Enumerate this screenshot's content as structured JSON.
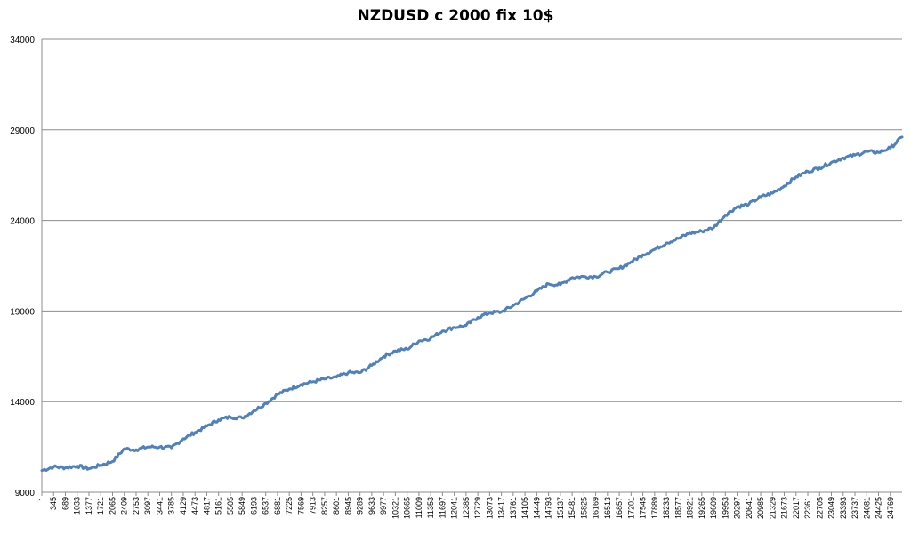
{
  "chart_data": {
    "type": "line",
    "title": "NZDUSD c 2000  fix 10$",
    "xlabel": "",
    "ylabel": "",
    "ylim": [
      9000,
      34000
    ],
    "yticks": [
      9000,
      14000,
      19000,
      24000,
      29000,
      34000
    ],
    "xlim": [
      1,
      25113
    ],
    "xtick_labels": [
      "1",
      "345",
      "689",
      "1033",
      "1377",
      "1721",
      "2065",
      "2409",
      "2753",
      "3097",
      "3441",
      "3785",
      "4129",
      "4473",
      "4817",
      "5161",
      "5505",
      "5849",
      "6193",
      "6537",
      "6881",
      "7225",
      "7569",
      "7913",
      "8257",
      "8601",
      "8945",
      "9289",
      "9633",
      "9977",
      "10321",
      "10665",
      "11009",
      "11353",
      "11697",
      "12041",
      "12385",
      "12729",
      "13073",
      "13417",
      "13761",
      "14105",
      "14449",
      "14793",
      "15137",
      "15481",
      "15825",
      "16169",
      "16513",
      "16857",
      "17201",
      "17545",
      "17889",
      "18233",
      "18577",
      "18921",
      "19265",
      "19609",
      "19953",
      "20297",
      "20641",
      "20985",
      "21329",
      "21673",
      "22017",
      "22361",
      "22705",
      "23049",
      "23393",
      "23737",
      "24081",
      "24425",
      "24769"
    ],
    "grid": true,
    "legend": "none",
    "line_color": "#4f81bd",
    "series": [
      {
        "x": [
          1,
          345,
          689,
          1033,
          1377,
          1721,
          2065,
          2409,
          2753,
          3097,
          3441,
          3785,
          4129,
          4473,
          4817,
          5161,
          5505,
          5849,
          6193,
          6537,
          6881,
          7225,
          7569,
          7913,
          8257,
          8601,
          8945,
          9289,
          9633,
          9977,
          10321,
          10665,
          11009,
          11353,
          11697,
          12041,
          12385,
          12729,
          13073,
          13417,
          13761,
          14105,
          14449,
          14793,
          15137,
          15481,
          15825,
          16169,
          16513,
          16857,
          17201,
          17545,
          17889,
          18233,
          18577,
          18921,
          19265,
          19609,
          19953,
          20297,
          20641,
          20985,
          21329,
          21673,
          22017,
          22361,
          22705,
          23049,
          23393,
          23737,
          24081,
          24425,
          24769,
          25113
        ],
        "values": [
          10200,
          10400,
          10350,
          10450,
          10300,
          10500,
          10700,
          11400,
          11350,
          11500,
          11500,
          11450,
          11950,
          12300,
          12650,
          13000,
          13150,
          13100,
          13500,
          13900,
          14400,
          14700,
          14950,
          15100,
          15250,
          15350,
          15600,
          15600,
          16000,
          16500,
          16800,
          16900,
          17350,
          17500,
          17900,
          18100,
          18200,
          18650,
          18900,
          18950,
          19300,
          19700,
          20100,
          20500,
          20450,
          20850,
          20900,
          20900,
          21150,
          21350,
          21700,
          22100,
          22400,
          22750,
          23000,
          23300,
          23400,
          23600,
          24300,
          24750,
          24900,
          25300,
          25500,
          25900,
          26400,
          26700,
          26900,
          27200,
          27450,
          27600,
          27800,
          27750,
          28000,
          28600
        ]
      }
    ]
  }
}
